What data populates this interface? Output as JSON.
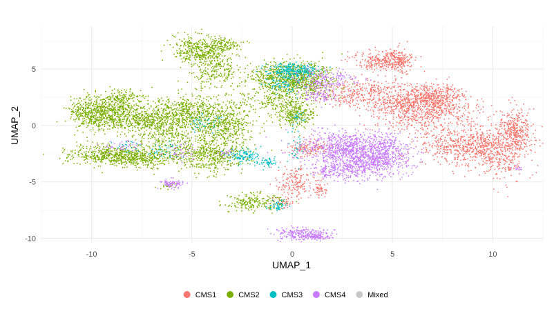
{
  "chart_data": {
    "type": "scatter",
    "title": "",
    "xlabel": "UMAP_1",
    "ylabel": "UMAP_2",
    "xlim": [
      -12.5,
      12.5
    ],
    "ylim": [
      -10.4,
      8.8
    ],
    "grid": true,
    "legend_position": "bottom",
    "x_ticks": [
      {
        "value": -10,
        "label": "-10"
      },
      {
        "value": -5,
        "label": "-5"
      },
      {
        "value": 0,
        "label": "0"
      },
      {
        "value": 5,
        "label": "5"
      },
      {
        "value": 10,
        "label": "10"
      }
    ],
    "y_ticks": [
      {
        "value": 5,
        "label": "5"
      },
      {
        "value": 0,
        "label": "0"
      },
      {
        "value": -5,
        "label": "-5"
      },
      {
        "value": -10,
        "label": "-10"
      }
    ],
    "series": [
      {
        "name": "CMS1",
        "color": "#F8766D",
        "clusters": [
          {
            "cx": 4.5,
            "cy": 5.7,
            "sx": 0.7,
            "sy": 0.45,
            "n": 250
          },
          {
            "cx": 5.3,
            "cy": 5.8,
            "sx": 0.3,
            "sy": 0.6,
            "n": 150
          },
          {
            "cx": 3.6,
            "cy": 3.2,
            "sx": 1.2,
            "sy": 0.4,
            "n": 220
          },
          {
            "cx": 6.6,
            "cy": 1.5,
            "sx": 1.3,
            "sy": 1.0,
            "n": 750
          },
          {
            "cx": 7.0,
            "cy": 2.6,
            "sx": 0.8,
            "sy": 0.5,
            "n": 280
          },
          {
            "cx": 8.3,
            "cy": -1.8,
            "sx": 1.0,
            "sy": 0.8,
            "n": 450
          },
          {
            "cx": 10.2,
            "cy": -2.0,
            "sx": 0.9,
            "sy": 1.1,
            "n": 520
          },
          {
            "cx": 11.2,
            "cy": -0.3,
            "sx": 0.35,
            "sy": 0.9,
            "n": 280
          },
          {
            "cx": 5.3,
            "cy": 1.8,
            "sx": 0.7,
            "sy": 0.3,
            "n": 160
          },
          {
            "cx": 0.8,
            "cy": -2.0,
            "sx": 0.5,
            "sy": 0.4,
            "n": 130
          },
          {
            "cx": 0.2,
            "cy": -5.0,
            "sx": 0.45,
            "sy": 0.7,
            "n": 170
          },
          {
            "cx": 1.4,
            "cy": -5.7,
            "sx": 0.15,
            "sy": 0.3,
            "n": 50
          },
          {
            "cx": -0.4,
            "cy": -6.9,
            "sx": 0.3,
            "sy": 0.25,
            "n": 50
          },
          {
            "cx": 11.0,
            "cy": -3.8,
            "sx": 0.2,
            "sy": 0.1,
            "n": 15
          },
          {
            "cx": 3.0,
            "cy": 2.3,
            "sx": 0.9,
            "sy": 0.3,
            "n": 100
          }
        ]
      },
      {
        "name": "CMS2",
        "color": "#7CAE00",
        "clusters": [
          {
            "cx": -10.0,
            "cy": 1.0,
            "sx": 0.6,
            "sy": 0.7,
            "n": 280
          },
          {
            "cx": -9.0,
            "cy": 1.4,
            "sx": 0.9,
            "sy": 0.7,
            "n": 480
          },
          {
            "cx": -7.8,
            "cy": 0.4,
            "sx": 0.9,
            "sy": 0.5,
            "n": 280
          },
          {
            "cx": -8.4,
            "cy": 2.5,
            "sx": 0.4,
            "sy": 0.3,
            "n": 90
          },
          {
            "cx": -9.1,
            "cy": -2.6,
            "sx": 1.1,
            "sy": 0.45,
            "n": 420
          },
          {
            "cx": -7.6,
            "cy": -2.9,
            "sx": 0.9,
            "sy": 0.4,
            "n": 300
          },
          {
            "cx": -6.3,
            "cy": -0.5,
            "sx": 0.8,
            "sy": 1.2,
            "n": 450
          },
          {
            "cx": -5.1,
            "cy": 1.2,
            "sx": 1.0,
            "sy": 0.7,
            "n": 480
          },
          {
            "cx": -4.0,
            "cy": -2.6,
            "sx": 0.9,
            "sy": 0.8,
            "n": 500
          },
          {
            "cx": -3.5,
            "cy": 0.0,
            "sx": 0.8,
            "sy": 0.8,
            "n": 380
          },
          {
            "cx": -4.6,
            "cy": 6.8,
            "sx": 0.7,
            "sy": 0.6,
            "n": 380
          },
          {
            "cx": -3.8,
            "cy": 5.0,
            "sx": 0.6,
            "sy": 0.9,
            "n": 260
          },
          {
            "cx": -3.3,
            "cy": 7.2,
            "sx": 0.4,
            "sy": 0.3,
            "n": 80
          },
          {
            "cx": -0.6,
            "cy": 4.2,
            "sx": 0.8,
            "sy": 0.7,
            "n": 420
          },
          {
            "cx": 0.6,
            "cy": 4.0,
            "sx": 0.8,
            "sy": 0.8,
            "n": 480
          },
          {
            "cx": -0.8,
            "cy": 2.4,
            "sx": 0.5,
            "sy": 0.6,
            "n": 150
          },
          {
            "cx": 0.2,
            "cy": 1.0,
            "sx": 0.45,
            "sy": 0.6,
            "n": 260
          },
          {
            "cx": -1.8,
            "cy": -6.8,
            "sx": 0.7,
            "sy": 0.35,
            "n": 200
          },
          {
            "cx": -2.5,
            "cy": 2.0,
            "sx": 0.5,
            "sy": 0.7,
            "n": 60
          },
          {
            "cx": -6.2,
            "cy": -5.4,
            "sx": 0.25,
            "sy": 0.15,
            "n": 15
          }
        ]
      },
      {
        "name": "CMS3",
        "color": "#00BFC4",
        "clusters": [
          {
            "cx": 0.1,
            "cy": 4.9,
            "sx": 0.6,
            "sy": 0.3,
            "n": 240
          },
          {
            "cx": -0.4,
            "cy": 3.8,
            "sx": 0.5,
            "sy": 0.5,
            "n": 90
          },
          {
            "cx": -2.4,
            "cy": -2.7,
            "sx": 0.4,
            "sy": 0.3,
            "n": 110
          },
          {
            "cx": -1.1,
            "cy": -3.2,
            "sx": 0.3,
            "sy": 0.2,
            "n": 50
          },
          {
            "cx": -0.7,
            "cy": -7.1,
            "sx": 0.25,
            "sy": 0.2,
            "n": 45
          },
          {
            "cx": 0.2,
            "cy": -2.0,
            "sx": 0.2,
            "sy": 0.8,
            "n": 30
          },
          {
            "cx": -4.3,
            "cy": 0.2,
            "sx": 0.5,
            "sy": 0.5,
            "n": 40
          },
          {
            "cx": -6.3,
            "cy": -2.3,
            "sx": 0.5,
            "sy": 0.4,
            "n": 35
          },
          {
            "cx": -8.2,
            "cy": -1.8,
            "sx": 0.4,
            "sy": 0.3,
            "n": 20
          },
          {
            "cx": 0.3,
            "cy": 0.8,
            "sx": 0.2,
            "sy": 0.3,
            "n": 20
          }
        ]
      },
      {
        "name": "CMS4",
        "color": "#C77CFF",
        "clusters": [
          {
            "cx": 2.6,
            "cy": -2.0,
            "sx": 1.1,
            "sy": 0.7,
            "n": 700
          },
          {
            "cx": 3.9,
            "cy": -3.1,
            "sx": 1.0,
            "sy": 0.8,
            "n": 650
          },
          {
            "cx": 2.4,
            "cy": -4.0,
            "sx": 0.7,
            "sy": 0.4,
            "n": 200
          },
          {
            "cx": 4.8,
            "cy": -1.8,
            "sx": 0.5,
            "sy": 0.6,
            "n": 150
          },
          {
            "cx": 0.5,
            "cy": -9.6,
            "sx": 0.7,
            "sy": 0.3,
            "n": 220
          },
          {
            "cx": 1.3,
            "cy": -9.9,
            "sx": 0.35,
            "sy": 0.12,
            "n": 80
          },
          {
            "cx": 1.6,
            "cy": 4.0,
            "sx": 0.7,
            "sy": 0.5,
            "n": 200
          },
          {
            "cx": 1.3,
            "cy": 2.6,
            "sx": 0.5,
            "sy": 0.3,
            "n": 90
          },
          {
            "cx": -6.0,
            "cy": -5.2,
            "sx": 0.28,
            "sy": 0.22,
            "n": 80
          },
          {
            "cx": -5.5,
            "cy": -2.4,
            "sx": 0.4,
            "sy": 0.3,
            "n": 40
          },
          {
            "cx": -8.5,
            "cy": -1.9,
            "sx": 0.5,
            "sy": 0.3,
            "n": 40
          },
          {
            "cx": -3.3,
            "cy": -2.5,
            "sx": 0.3,
            "sy": 0.2,
            "n": 20
          },
          {
            "cx": 11.2,
            "cy": -3.8,
            "sx": 0.12,
            "sy": 0.08,
            "n": 15
          }
        ]
      },
      {
        "name": "Mixed",
        "color": "#C8C8C8",
        "clusters": [
          {
            "cx": 0.2,
            "cy": -2.0,
            "sx": 0.2,
            "sy": 0.3,
            "n": 4
          }
        ]
      }
    ]
  }
}
